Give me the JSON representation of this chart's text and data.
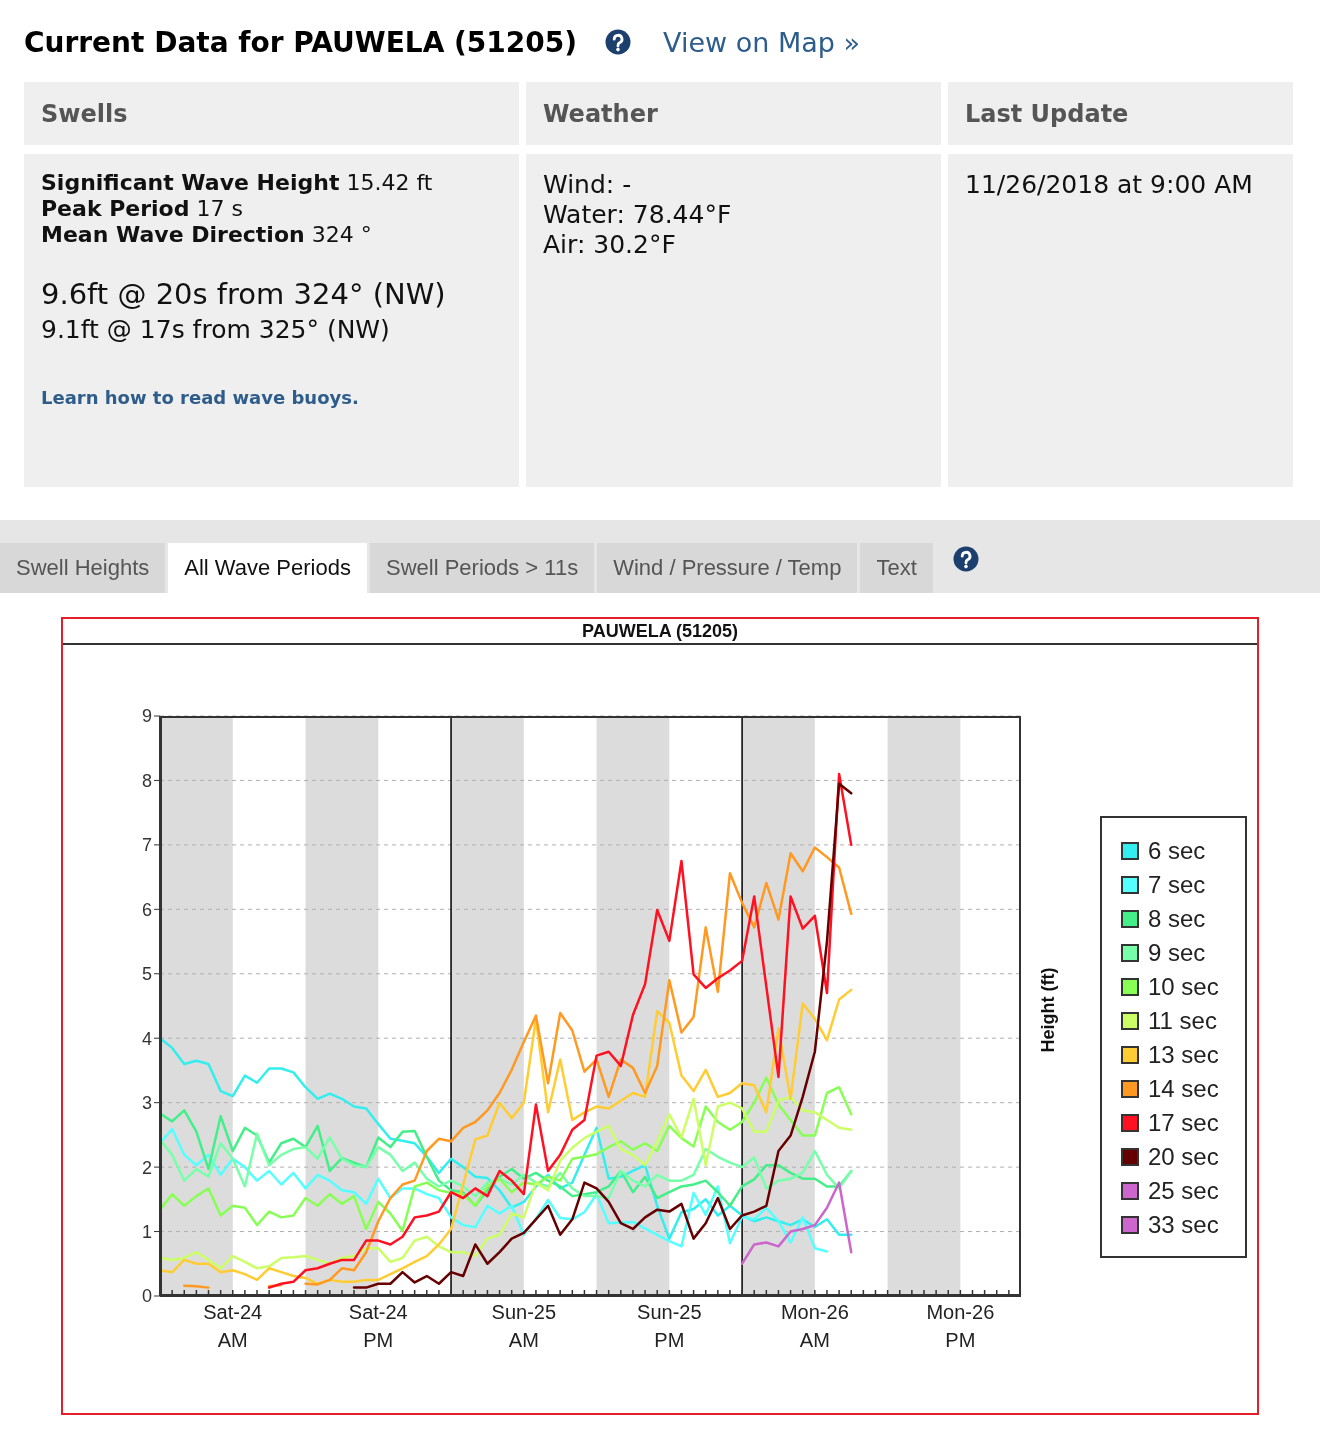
{
  "chart_data": [
    {
      "type": "other",
      "title": "Current Data for PAUWELA (51205)",
      "annotations": [
        "View on Map »",
        "Swells",
        "Weather",
        "Last Update",
        "Significant Wave Height",
        "15.42 ft",
        "Peak Period",
        "17 s",
        "Mean Wave Direction",
        "324 °",
        "9.6ft @ 20s from 324° (NW)",
        "9.1ft @ 17s from 325° (NW)",
        "Learn how to read wave buoys.",
        "Wind: -",
        "Water: 78.44°F",
        "Air: 30.2°F",
        "11/26/2018 at 9:00 AM",
        "Swell Heights",
        "All Wave Periods",
        "Swell Periods > 11s",
        "Wind / Pressure / Temp",
        "Text"
      ]
    },
    {
      "type": "line",
      "title": "PAUWELA (51205)",
      "ylabel": "Height (ft)",
      "x": [
        "2018-11-24T00:00",
        "2018-11-24T01:00",
        "2018-11-24T02:00",
        "2018-11-24T03:00",
        "2018-11-24T04:00",
        "2018-11-24T05:00",
        "2018-11-24T06:00",
        "2018-11-24T07:00",
        "2018-11-24T08:00",
        "2018-11-24T09:00",
        "2018-11-24T10:00",
        "2018-11-24T11:00",
        "2018-11-24T12:00",
        "2018-11-24T13:00",
        "2018-11-24T14:00",
        "2018-11-24T15:00",
        "2018-11-24T16:00",
        "2018-11-24T17:00",
        "2018-11-24T18:00",
        "2018-11-24T19:00",
        "2018-11-24T20:00",
        "2018-11-24T21:00",
        "2018-11-24T22:00",
        "2018-11-24T23:00",
        "2018-11-25T00:00",
        "2018-11-25T01:00",
        "2018-11-25T02:00",
        "2018-11-25T03:00",
        "2018-11-25T04:00",
        "2018-11-25T05:00",
        "2018-11-25T06:00",
        "2018-11-25T07:00",
        "2018-11-25T08:00",
        "2018-11-25T09:00",
        "2018-11-25T10:00",
        "2018-11-25T11:00",
        "2018-11-25T12:00",
        "2018-11-25T13:00",
        "2018-11-25T14:00",
        "2018-11-25T15:00",
        "2018-11-25T16:00",
        "2018-11-25T17:00",
        "2018-11-25T18:00",
        "2018-11-25T19:00",
        "2018-11-25T20:00",
        "2018-11-25T21:00",
        "2018-11-25T22:00",
        "2018-11-25T23:00",
        "2018-11-26T00:00",
        "2018-11-26T01:00",
        "2018-11-26T02:00",
        "2018-11-26T03:00",
        "2018-11-26T04:00",
        "2018-11-26T05:00",
        "2018-11-26T06:00",
        "2018-11-26T07:00",
        "2018-11-26T08:00",
        "2018-11-26T09:00"
      ],
      "series": [
        {
          "name": "6 sec",
          "color": "#33eeee",
          "values": [
            4.0,
            3.85,
            3.6,
            3.65,
            3.6,
            3.18,
            3.1,
            3.42,
            3.31,
            3.53,
            3.53,
            3.47,
            3.24,
            3.06,
            3.14,
            3.06,
            2.94,
            2.91,
            2.67,
            2.44,
            2.41,
            2.37,
            2.16,
            1.91,
            2.13,
            2.0,
            1.85,
            1.83,
            1.64,
            1.37,
            1.46,
            1.7,
            1.88,
            1.67,
            1.76,
            2.19,
            2.61,
            1.82,
            1.85,
            1.94,
            2.03,
            1.4,
            0.89,
            1.3,
            1.35,
            1.5,
            1.25,
            1.4,
            1.25,
            1.16,
            1.22,
            1.16,
            1.1,
            1.19,
            1.07,
            1.19,
            0.95,
            0.95
          ]
        },
        {
          "name": "7 sec",
          "color": "#55ffff",
          "values": [
            2.37,
            2.59,
            2.19,
            2.03,
            2.19,
            1.88,
            2.13,
            2.0,
            1.79,
            1.94,
            1.73,
            1.91,
            1.67,
            1.88,
            1.79,
            1.64,
            1.61,
            1.43,
            1.82,
            1.52,
            1.67,
            1.67,
            1.58,
            1.52,
            1.22,
            1.1,
            1.07,
            1.4,
            1.28,
            1.4,
            0.95,
            1.2,
            1.49,
            1.21,
            1.19,
            1.3,
            1.58,
            1.13,
            1.14,
            1.15,
            1.05,
            0.95,
            0.85,
            0.77,
            1.6,
            1.26,
            1.7,
            0.82,
            1.23,
            1.19,
            1.37,
            1.16,
            0.83,
            1.22,
            0.74,
            0.69,
            null,
            null
          ]
        },
        {
          "name": "8 sec",
          "color": "#44ee88",
          "values": [
            2.83,
            2.71,
            2.88,
            2.55,
            1.97,
            2.79,
            2.25,
            2.61,
            2.49,
            2.07,
            2.37,
            2.44,
            2.31,
            2.64,
            1.94,
            2.14,
            2.07,
            2.0,
            2.46,
            2.31,
            2.55,
            2.56,
            2.16,
            1.79,
            1.64,
            1.61,
            1.4,
            1.64,
            1.85,
            1.97,
            1.82,
            1.91,
            1.79,
            1.7,
            1.55,
            1.58,
            1.61,
            1.7,
            1.94,
            1.61,
            1.85,
            1.52,
            1.61,
            1.7,
            1.73,
            1.79,
            1.61,
            1.4,
            1.7,
            1.81,
            2.03,
            2.03,
            1.91,
            1.82,
            1.82,
            1.7,
            1.7,
            1.94
          ]
        },
        {
          "name": "9 sec",
          "color": "#77ffaa",
          "values": [
            2.43,
            2.19,
            1.79,
            1.97,
            1.85,
            2.37,
            2.13,
            1.7,
            2.52,
            2.03,
            2.19,
            2.28,
            2.31,
            2.13,
            2.46,
            2.13,
            2.03,
            2.0,
            2.31,
            2.19,
            1.94,
            2.07,
            1.82,
            1.7,
            1.79,
            1.7,
            1.55,
            1.76,
            1.82,
            1.73,
            1.88,
            1.76,
            1.7,
            1.91,
            1.67,
            1.55,
            1.55,
            1.52,
            1.94,
            1.79,
            1.7,
            1.88,
            1.79,
            1.79,
            1.88,
            2.28,
            2.16,
            2.07,
            2.0,
            2.15,
            1.67,
            1.79,
            1.82,
            1.91,
            2.25,
            1.88,
            1.67,
            1.94
          ]
        },
        {
          "name": "10 sec",
          "color": "#88ff55",
          "values": [
            1.34,
            1.58,
            1.4,
            1.55,
            1.67,
            1.25,
            1.4,
            1.37,
            1.1,
            1.31,
            1.22,
            1.25,
            1.52,
            1.4,
            1.58,
            1.43,
            1.55,
            1.04,
            1.46,
            1.28,
            1.01,
            1.7,
            1.76,
            1.64,
            1.6,
            1.58,
            1.4,
            1.7,
            1.82,
            1.61,
            1.76,
            1.73,
            1.85,
            1.79,
            2.13,
            2.16,
            2.2,
            2.31,
            2.4,
            2.27,
            2.37,
            2.25,
            2.64,
            2.45,
            2.32,
            2.94,
            2.7,
            2.58,
            2.7,
            3.0,
            3.39,
            2.97,
            2.73,
            2.49,
            2.49,
            3.15,
            3.24,
            2.82
          ]
        },
        {
          "name": "11 sec",
          "color": "#ccff66",
          "values": [
            0.59,
            0.56,
            0.59,
            0.68,
            0.56,
            0.43,
            0.62,
            0.53,
            0.43,
            0.46,
            0.59,
            0.6,
            0.62,
            0.56,
            0.5,
            0.59,
            0.62,
            0.74,
            0.74,
            0.53,
            0.59,
            0.86,
            0.92,
            0.77,
            0.68,
            0.68,
            0.62,
            0.89,
            0.95,
            1.28,
            1.22,
            1.76,
            1.64,
            2.1,
            2.3,
            2.45,
            2.55,
            2.64,
            2.28,
            2.19,
            2.03,
            2.4,
            2.82,
            2.46,
            3.06,
            2.03,
            2.94,
            3.0,
            2.91,
            2.55,
            2.55,
            3.03,
            3.09,
            2.88,
            2.85,
            2.73,
            2.61,
            2.58
          ]
        },
        {
          "name": "13 sec",
          "color": "#ffcc33",
          "values": [
            0.4,
            0.37,
            0.56,
            0.5,
            0.5,
            0.37,
            0.4,
            0.34,
            0.25,
            0.43,
            0.37,
            0.31,
            0.28,
            0.19,
            0.25,
            0.22,
            0.22,
            0.25,
            0.25,
            0.34,
            0.43,
            0.53,
            0.62,
            0.8,
            1.04,
            1.73,
            2.43,
            2.49,
            3.0,
            2.76,
            3.0,
            4.3,
            2.85,
            3.67,
            2.73,
            2.85,
            2.94,
            2.91,
            3.03,
            3.15,
            3.09,
            4.42,
            4.24,
            3.42,
            3.18,
            3.51,
            3.09,
            3.15,
            3.3,
            3.27,
            2.85,
            4.15,
            3.06,
            4.54,
            4.3,
            3.97,
            4.6,
            4.75
          ]
        },
        {
          "name": "14 sec",
          "color": "#ff9922",
          "values": [
            null,
            null,
            0.16,
            0.15,
            0.13,
            null,
            null,
            null,
            null,
            0.15,
            0.17,
            null,
            0.19,
            0.18,
            0.25,
            0.43,
            0.4,
            0.68,
            1.16,
            1.52,
            1.73,
            1.79,
            2.25,
            2.44,
            2.4,
            2.61,
            2.7,
            2.88,
            3.15,
            3.51,
            3.94,
            4.35,
            3.3,
            4.39,
            4.12,
            3.48,
            3.67,
            3.09,
            3.67,
            3.54,
            3.15,
            3.57,
            4.9,
            4.09,
            4.33,
            5.72,
            4.72,
            6.56,
            6.1,
            5.72,
            6.41,
            5.84,
            6.87,
            6.59,
            6.96,
            6.81,
            6.65,
            5.93
          ]
        },
        {
          "name": "17 sec",
          "color": "#ff1122",
          "values": [
            null,
            null,
            null,
            null,
            null,
            null,
            null,
            null,
            null,
            0.13,
            0.19,
            0.22,
            0.4,
            0.43,
            0.5,
            0.56,
            0.56,
            0.86,
            0.86,
            0.8,
            0.92,
            1.22,
            1.25,
            1.31,
            1.61,
            1.52,
            1.67,
            1.55,
            1.94,
            1.79,
            1.58,
            2.97,
            1.94,
            2.19,
            2.58,
            2.73,
            3.73,
            3.79,
            3.57,
            4.36,
            4.84,
            5.99,
            5.51,
            6.75,
            4.99,
            4.78,
            4.93,
            5.05,
            5.2,
            6.2,
            4.8,
            3.4,
            6.2,
            5.7,
            5.9,
            4.7,
            8.1,
            7.0
          ]
        },
        {
          "name": "20 sec",
          "color": "#660000",
          "values": [
            null,
            null,
            null,
            null,
            null,
            null,
            null,
            null,
            null,
            null,
            null,
            null,
            null,
            null,
            null,
            null,
            0.13,
            0.13,
            0.19,
            0.19,
            0.37,
            0.21,
            0.31,
            0.19,
            0.37,
            0.31,
            0.8,
            0.5,
            0.68,
            0.89,
            0.98,
            1.19,
            1.4,
            0.95,
            1.19,
            1.76,
            1.67,
            1.46,
            1.13,
            1.04,
            1.22,
            1.34,
            1.31,
            1.43,
            0.89,
            1.13,
            1.52,
            1.04,
            1.25,
            1.31,
            1.4,
            2.25,
            2.49,
            3.09,
            3.79,
            5.5,
            7.95,
            7.8
          ]
        },
        {
          "name": "25 sec",
          "color": "#cc66cc",
          "values": [
            null,
            null,
            null,
            null,
            null,
            null,
            null,
            null,
            null,
            null,
            null,
            null,
            null,
            null,
            null,
            null,
            null,
            null,
            null,
            null,
            null,
            null,
            null,
            null,
            null,
            null,
            null,
            null,
            null,
            null,
            null,
            null,
            null,
            null,
            null,
            null,
            null,
            null,
            null,
            null,
            null,
            null,
            null,
            null,
            null,
            null,
            null,
            null,
            0.5,
            0.8,
            0.83,
            0.77,
            1.0,
            1.04,
            1.1,
            1.37,
            1.76,
            0.68
          ]
        },
        {
          "name": "33 sec",
          "color": "#cc66cc",
          "values": [
            null,
            null,
            null,
            null,
            null,
            null,
            null,
            null,
            null,
            null,
            null,
            null,
            null,
            null,
            null,
            null,
            null,
            null,
            null,
            null,
            null,
            null,
            null,
            null,
            null,
            null,
            null,
            null,
            null,
            null,
            null,
            null,
            null,
            null,
            null,
            null,
            null,
            null,
            null,
            null,
            null,
            null,
            null,
            null,
            null,
            null,
            null,
            null,
            null,
            null,
            null,
            null,
            null,
            null,
            null,
            null,
            null,
            null
          ]
        }
      ],
      "xlim": [
        "2018-11-24T00:00",
        "2018-11-26T23:00"
      ],
      "xticks": [
        {
          "value": "2018-11-24T00:00",
          "label": null
        },
        {
          "value": "2018-11-24T01:00",
          "label": null
        },
        {
          "value": "2018-11-24T02:00",
          "label": null
        },
        {
          "value": "2018-11-24T03:00",
          "label": null
        },
        {
          "value": "2018-11-24T04:00",
          "label": null
        },
        {
          "value": "2018-11-24T05:00",
          "label": null
        },
        {
          "value": "2018-11-24T06:00",
          "label": "Sat-24\nAM"
        },
        {
          "value": "2018-11-24T07:00",
          "label": null
        },
        {
          "value": "2018-11-24T08:00",
          "label": null
        },
        {
          "value": "2018-11-24T09:00",
          "label": null
        },
        {
          "value": "2018-11-24T10:00",
          "label": null
        },
        {
          "value": "2018-11-24T11:00",
          "label": null
        },
        {
          "value": "2018-11-24T12:00",
          "label": null
        },
        {
          "value": "2018-11-24T13:00",
          "label": null
        },
        {
          "value": "2018-11-24T14:00",
          "label": null
        },
        {
          "value": "2018-11-24T15:00",
          "label": null
        },
        {
          "value": "2018-11-24T16:00",
          "label": null
        },
        {
          "value": "2018-11-24T17:00",
          "label": null
        },
        {
          "value": "2018-11-24T18:00",
          "label": "Sat-24\nPM"
        },
        {
          "value": "2018-11-24T19:00",
          "label": null
        },
        {
          "value": "2018-11-24T20:00",
          "label": null
        },
        {
          "value": "2018-11-24T21:00",
          "label": null
        },
        {
          "value": "2018-11-24T22:00",
          "label": null
        },
        {
          "value": "2018-11-24T23:00",
          "label": null
        },
        {
          "value": "2018-11-25T00:00",
          "label": null
        },
        {
          "value": "2018-11-25T01:00",
          "label": null
        },
        {
          "value": "2018-11-25T02:00",
          "label": null
        },
        {
          "value": "2018-11-25T03:00",
          "label": null
        },
        {
          "value": "2018-11-25T04:00",
          "label": null
        },
        {
          "value": "2018-11-25T05:00",
          "label": null
        },
        {
          "value": "2018-11-25T06:00",
          "label": "Sun-25\nAM"
        },
        {
          "value": "2018-11-25T07:00",
          "label": null
        },
        {
          "value": "2018-11-25T08:00",
          "label": null
        },
        {
          "value": "2018-11-25T09:00",
          "label": null
        },
        {
          "value": "2018-11-25T10:00",
          "label": null
        },
        {
          "value": "2018-11-25T11:00",
          "label": null
        },
        {
          "value": "2018-11-25T12:00",
          "label": null
        },
        {
          "value": "2018-11-25T13:00",
          "label": null
        },
        {
          "value": "2018-11-25T14:00",
          "label": null
        },
        {
          "value": "2018-11-25T15:00",
          "label": null
        },
        {
          "value": "2018-11-25T16:00",
          "label": null
        },
        {
          "value": "2018-11-25T17:00",
          "label": null
        },
        {
          "value": "2018-11-25T18:00",
          "label": "Sun-25\nPM"
        },
        {
          "value": "2018-11-25T19:00",
          "label": null
        },
        {
          "value": "2018-11-25T20:00",
          "label": null
        },
        {
          "value": "2018-11-25T21:00",
          "label": null
        },
        {
          "value": "2018-11-25T22:00",
          "label": null
        },
        {
          "value": "2018-11-25T23:00",
          "label": null
        },
        {
          "value": "2018-11-26T00:00",
          "label": null
        },
        {
          "value": "2018-11-26T01:00",
          "label": null
        },
        {
          "value": "2018-11-26T02:00",
          "label": null
        },
        {
          "value": "2018-11-26T03:00",
          "label": null
        },
        {
          "value": "2018-11-26T04:00",
          "label": null
        },
        {
          "value": "2018-11-26T05:00",
          "label": null
        },
        {
          "value": "2018-11-26T06:00",
          "label": "Mon-26\nAM"
        },
        {
          "value": "2018-11-26T07:00",
          "label": null
        },
        {
          "value": "2018-11-26T08:00",
          "label": null
        },
        {
          "value": "2018-11-26T09:00",
          "label": null
        },
        {
          "value": "2018-11-26T10:00",
          "label": null
        },
        {
          "value": "2018-11-26T11:00",
          "label": null
        },
        {
          "value": "2018-11-26T12:00",
          "label": null
        },
        {
          "value": "2018-11-26T13:00",
          "label": null
        },
        {
          "value": "2018-11-26T14:00",
          "label": null
        },
        {
          "value": "2018-11-26T15:00",
          "label": null
        },
        {
          "value": "2018-11-26T16:00",
          "label": null
        },
        {
          "value": "2018-11-26T17:00",
          "label": null
        },
        {
          "value": "2018-11-26T18:00",
          "label": "Mon-26\nPM"
        },
        {
          "value": "2018-11-26T19:00",
          "label": null
        },
        {
          "value": "2018-11-26T20:00",
          "label": null
        },
        {
          "value": "2018-11-26T21:00",
          "label": null
        },
        {
          "value": "2018-11-26T22:00",
          "label": null
        }
      ],
      "ylim": [
        0,
        9
      ],
      "yticks": [
        0,
        1,
        2,
        3,
        4,
        5,
        6,
        7,
        8,
        9
      ],
      "grid": "y",
      "legend": "right",
      "ref_lines": [
        {
          "axis": "x",
          "value": "2018-11-25T00:00",
          "color": "#000000"
        },
        {
          "axis": "x",
          "value": "2018-11-26T00:00",
          "color": "#000000"
        }
      ],
      "bands": [
        {
          "axis": "x",
          "from": "2018-11-24T00:00",
          "to": "2018-11-24T06:00",
          "color": "#dcdcdc"
        },
        {
          "axis": "x",
          "from": "2018-11-24T12:00",
          "to": "2018-11-24T18:00",
          "color": "#dcdcdc"
        },
        {
          "axis": "x",
          "from": "2018-11-25T00:00",
          "to": "2018-11-25T06:00",
          "color": "#dcdcdc"
        },
        {
          "axis": "x",
          "from": "2018-11-25T12:00",
          "to": "2018-11-25T18:00",
          "color": "#dcdcdc"
        },
        {
          "axis": "x",
          "from": "2018-11-26T00:00",
          "to": "2018-11-26T06:00",
          "color": "#dcdcdc"
        },
        {
          "axis": "x",
          "from": "2018-11-26T12:00",
          "to": "2018-11-26T18:00",
          "color": "#dcdcdc"
        }
      ]
    }
  ]
}
